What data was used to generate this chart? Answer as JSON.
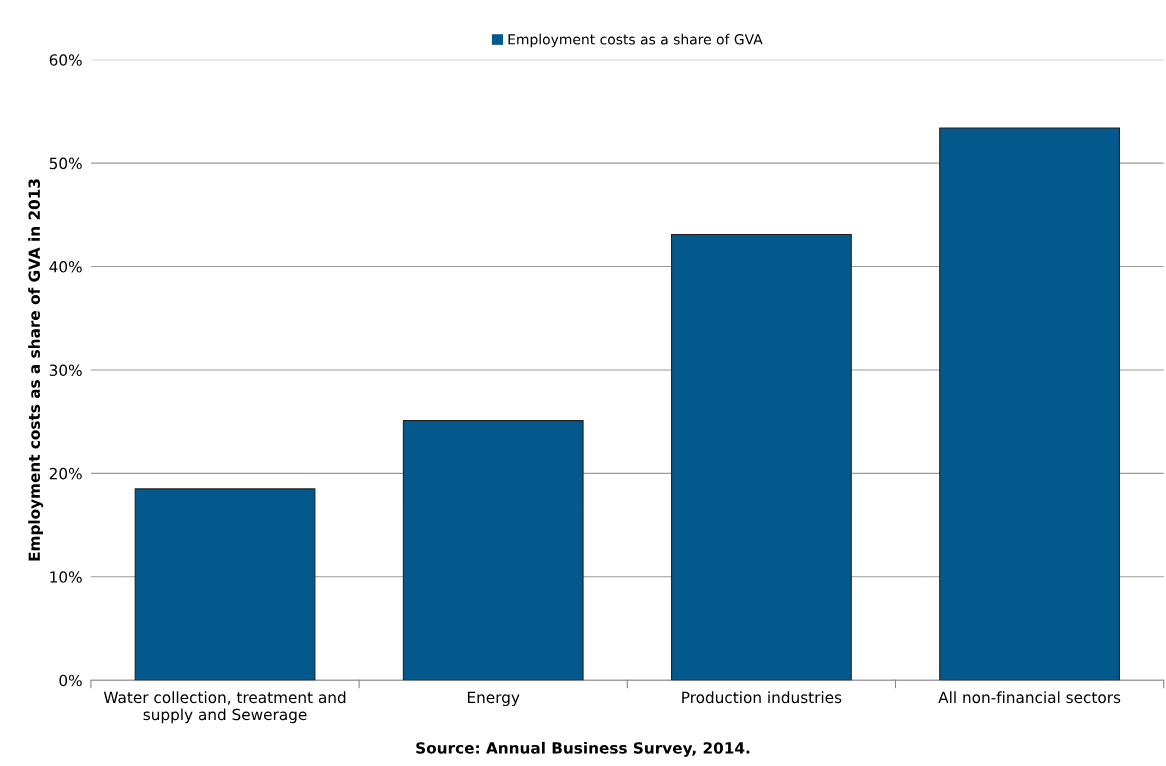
{
  "chart_data": {
    "type": "bar",
    "categories": [
      "Water collection, treatment and\nsupply and Sewerage",
      "Energy",
      "Production industries",
      "All non-financial sectors"
    ],
    "series": [
      {
        "name": "Employment costs as a share of GVA",
        "color": "#04598c",
        "values": [
          18.5,
          25.1,
          43.1,
          53.4
        ]
      }
    ],
    "ylabel": "Employment costs as a share of GVA in 2013",
    "ylim": [
      0,
      60
    ],
    "yticks": [
      {
        "value": 0,
        "label": "0%"
      },
      {
        "value": 10,
        "label": "10%"
      },
      {
        "value": 20,
        "label": "20%"
      },
      {
        "value": 30,
        "label": "30%"
      },
      {
        "value": 40,
        "label": "40%"
      },
      {
        "value": 50,
        "label": "50%"
      },
      {
        "value": 60,
        "label": "60%"
      }
    ],
    "grid": "y",
    "legend": "top",
    "annotations": [
      "Source: Annual Business Survey, 2014."
    ]
  }
}
